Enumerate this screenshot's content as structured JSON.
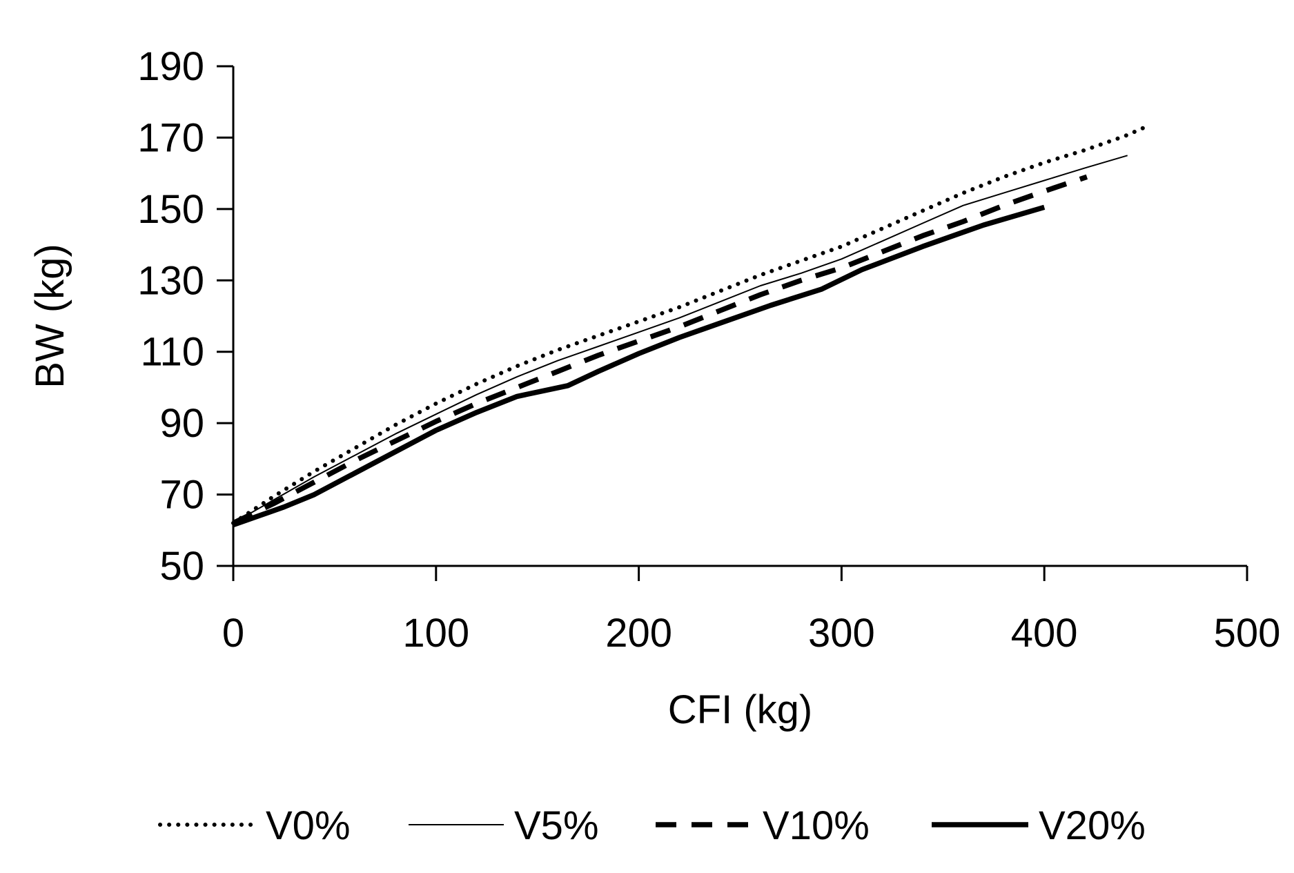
{
  "chart_data": {
    "type": "line",
    "title": "",
    "xlabel": "CFI (kg)",
    "ylabel": "BW (kg)",
    "xlim": [
      0,
      500
    ],
    "ylim": [
      50,
      190
    ],
    "xticks": [
      0,
      100,
      200,
      300,
      400,
      500
    ],
    "yticks": [
      50,
      70,
      90,
      110,
      130,
      150,
      170,
      190
    ],
    "xtick_labels": [
      "0",
      "100",
      "200",
      "300",
      "400",
      "500"
    ],
    "ytick_labels": [
      "50",
      "70",
      "90",
      "110",
      "130",
      "150",
      "170",
      "190"
    ],
    "grid": false,
    "legend_position": "bottom",
    "series": [
      {
        "name": "V0%",
        "style": "dotted",
        "weight": "medium",
        "x": [
          0,
          20,
          40,
          60,
          80,
          100,
          120,
          140,
          160,
          180,
          200,
          220,
          240,
          260,
          280,
          300,
          320,
          340,
          360,
          380,
          400,
          420,
          440,
          452
        ],
        "y": [
          62,
          69.5,
          76.5,
          83,
          89.5,
          95.5,
          101,
          106,
          110.5,
          114.5,
          118.5,
          122.5,
          127,
          131.5,
          135.5,
          139.5,
          144.5,
          149.5,
          154.5,
          159,
          163,
          166.5,
          170.5,
          173.5
        ]
      },
      {
        "name": "V5%",
        "style": "solid",
        "weight": "thin",
        "x": [
          0,
          20,
          40,
          60,
          80,
          100,
          120,
          140,
          160,
          180,
          200,
          220,
          240,
          260,
          280,
          300,
          320,
          340,
          360,
          380,
          400,
          420,
          441
        ],
        "y": [
          62,
          68.5,
          75,
          81,
          87,
          92.5,
          98,
          103,
          107.5,
          111.5,
          115.5,
          119.5,
          124,
          128.5,
          132,
          136,
          141,
          146,
          151,
          154.5,
          158,
          161.5,
          165
        ]
      },
      {
        "name": "V10%",
        "style": "dashed",
        "weight": "thick",
        "x": [
          0,
          20,
          40,
          60,
          80,
          100,
          120,
          140,
          160,
          180,
          200,
          220,
          240,
          260,
          280,
          300,
          320,
          340,
          360,
          380,
          400,
          421
        ],
        "y": [
          62,
          67.5,
          73.5,
          79.5,
          85,
          90.5,
          95.5,
          100,
          104.5,
          109,
          113,
          117,
          121.5,
          126,
          130,
          133.5,
          138,
          142.5,
          146.5,
          151,
          155,
          159
        ]
      },
      {
        "name": "V20%",
        "style": "solid",
        "weight": "thick",
        "x": [
          0,
          25,
          40,
          60,
          80,
          100,
          120,
          140,
          165,
          180,
          200,
          220,
          240,
          265,
          290,
          310,
          340,
          370,
          400
        ],
        "y": [
          61.5,
          66.5,
          70,
          76,
          82,
          88,
          93,
          97.5,
          100.5,
          104.5,
          109.5,
          114,
          118,
          123,
          127.5,
          133,
          139.5,
          145.5,
          150.5
        ]
      }
    ]
  }
}
